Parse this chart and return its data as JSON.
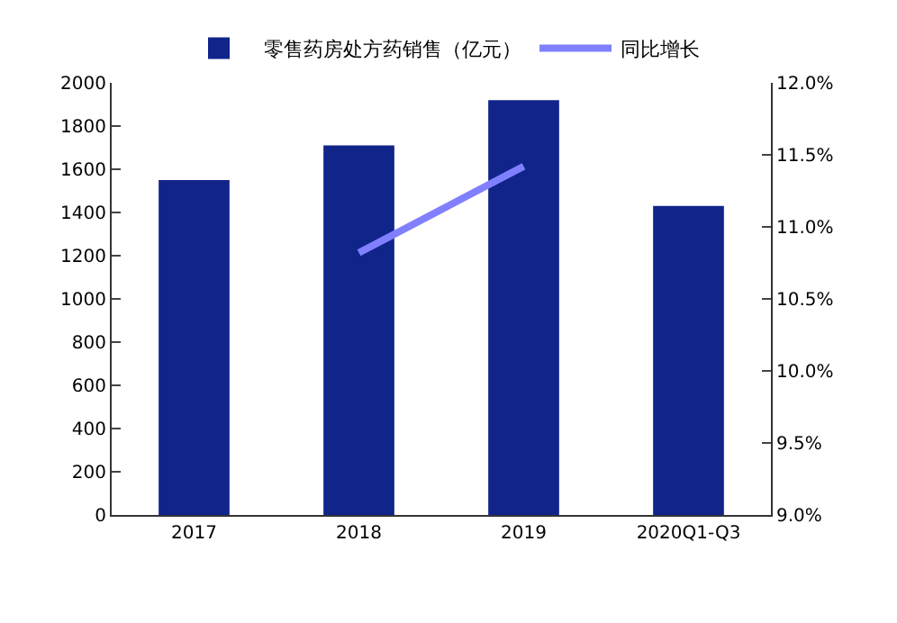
{
  "chart_data": {
    "type": "bar",
    "categories": [
      "2017",
      "2018",
      "2019",
      "2020Q1-Q3"
    ],
    "series": [
      {
        "name": "零售药房处方药销售（亿元）",
        "color": "#10248a",
        "values": [
          1550,
          1710,
          1920,
          1430
        ]
      },
      {
        "name": "同比增长",
        "type": "line",
        "axis": "y2",
        "color": "#8080ff",
        "values": [
          null,
          10.82,
          11.42,
          null
        ]
      }
    ],
    "ylim": [
      0,
      2000
    ],
    "yticks": [
      0,
      200,
      400,
      600,
      800,
      1000,
      1200,
      1400,
      1600,
      1800,
      2000
    ],
    "y2lim": [
      9.0,
      12.0
    ],
    "y2ticks": [
      {
        "value": 9.0,
        "label": "9.0%"
      },
      {
        "value": 9.5,
        "label": "9.5%"
      },
      {
        "value": 10.0,
        "label": "10.0%"
      },
      {
        "value": 10.5,
        "label": "10.5%"
      },
      {
        "value": 11.0,
        "label": "11.0%"
      },
      {
        "value": 11.5,
        "label": "11.5%"
      },
      {
        "value": 12.0,
        "label": "12.0%"
      }
    ],
    "legend": "top",
    "marker": "none"
  }
}
